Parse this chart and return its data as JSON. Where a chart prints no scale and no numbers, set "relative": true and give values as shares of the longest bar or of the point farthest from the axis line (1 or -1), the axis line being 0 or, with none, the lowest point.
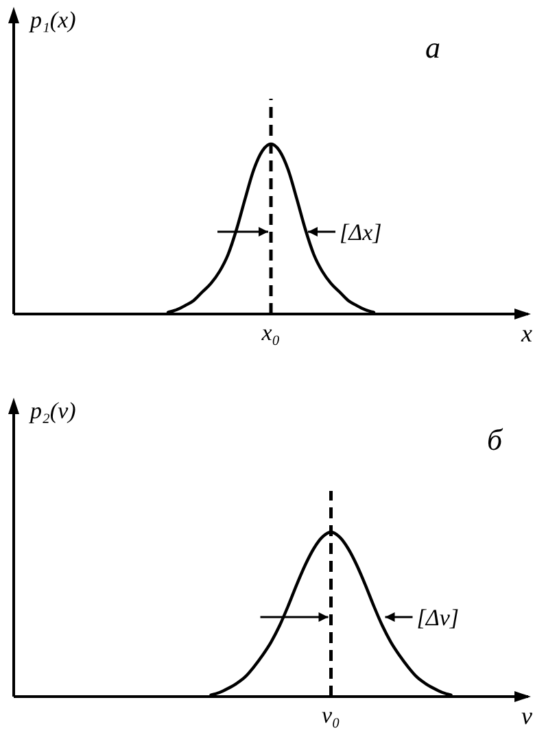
{
  "chart_data": [
    {
      "type": "line",
      "relative": true,
      "title": "а",
      "xlabel": "x",
      "ylabel": "p₁(x)",
      "categories": [
        null,
        null,
        null,
        null,
        null,
        null,
        null,
        null,
        null,
        null,
        null,
        null,
        null,
        null,
        null,
        null,
        null,
        null,
        null,
        null,
        null,
        null,
        null,
        null,
        null,
        null,
        null,
        null,
        null,
        null,
        null,
        null,
        null,
        null,
        null,
        null,
        null,
        null,
        null,
        null,
        null,
        null,
        null,
        null,
        null,
        null,
        null,
        null,
        null,
        null,
        null,
        null,
        null,
        null,
        null,
        null,
        null,
        null,
        null,
        null,
        null
      ],
      "series": [
        {
          "color": "#000000",
          "values": [
            null,
            null,
            null,
            null,
            null,
            null,
            null,
            null,
            null,
            null,
            null,
            null,
            null,
            null,
            null,
            null,
            null,
            null,
            0.01,
            0.025,
            0.05,
            0.08,
            0.13,
            0.18,
            0.25,
            0.35,
            0.5,
            0.68,
            0.85,
            0.96,
            1,
            0.96,
            0.85,
            0.68,
            0.5,
            0.35,
            0.25,
            0.18,
            0.13,
            0.08,
            0.05,
            0.025,
            0.01,
            null,
            null,
            null,
            null,
            null,
            null,
            null,
            null,
            null,
            null,
            null,
            null,
            null,
            null,
            null,
            null,
            null,
            null
          ]
        }
      ],
      "annotations": [
        "x₀",
        "[Δx]"
      ]
    },
    {
      "type": "line",
      "relative": true,
      "title": "б",
      "xlabel": "v",
      "ylabel": "p₂(v)",
      "categories": [
        null,
        null,
        null,
        null,
        null,
        null,
        null,
        null,
        null,
        null,
        null,
        null,
        null,
        null,
        null,
        null,
        null,
        null,
        null,
        null,
        null,
        null,
        null,
        null,
        null,
        null,
        null,
        null,
        null,
        null,
        null,
        null,
        null,
        null,
        null,
        null,
        null,
        null,
        null,
        null,
        null,
        null,
        null,
        null,
        null,
        null,
        null,
        null,
        null,
        null,
        null,
        null,
        null,
        null,
        null,
        null,
        null,
        null,
        null,
        null,
        null
      ],
      "series": [
        {
          "color": "#000000",
          "values": [
            null,
            null,
            null,
            null,
            null,
            null,
            null,
            null,
            null,
            null,
            null,
            null,
            null,
            null,
            null,
            null,
            null,
            null,
            null,
            null,
            null,
            null,
            null,
            0.01,
            0.025,
            0.05,
            0.08,
            0.12,
            0.18,
            0.25,
            0.33,
            0.43,
            0.55,
            0.68,
            0.8,
            0.9,
            0.97,
            1,
            0.97,
            0.9,
            0.8,
            0.68,
            0.55,
            0.43,
            0.33,
            0.25,
            0.18,
            0.12,
            0.08,
            0.05,
            0.025,
            0.01,
            null,
            null,
            null,
            null,
            null,
            null,
            null,
            null,
            null
          ]
        }
      ],
      "annotations": [
        "v₀",
        "[Δv]"
      ]
    }
  ]
}
